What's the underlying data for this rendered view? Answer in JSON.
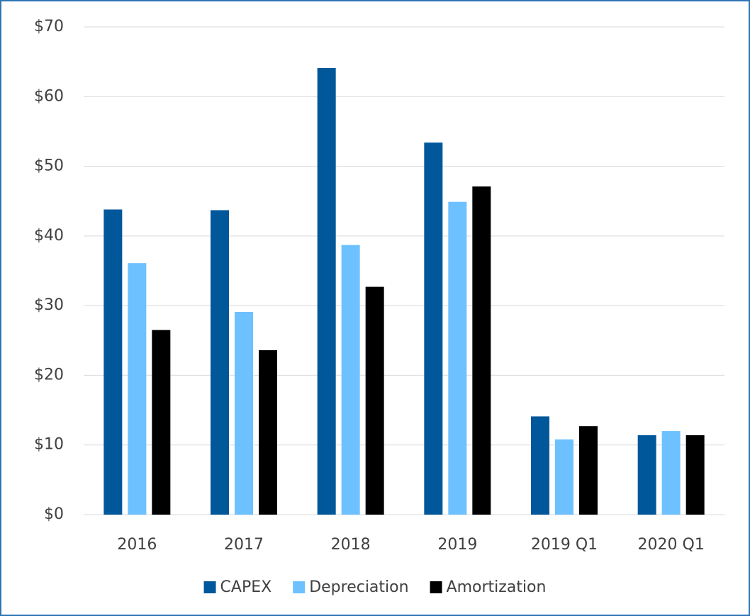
{
  "chart_data": {
    "type": "bar",
    "categories": [
      "2016",
      "2017",
      "2018",
      "2019",
      "2019 Q1",
      "2020 Q1"
    ],
    "series": [
      {
        "name": "CAPEX",
        "color": "#00579a",
        "values": [
          43.8,
          43.7,
          64.1,
          53.4,
          14.1,
          11.4
        ]
      },
      {
        "name": "Depreciation",
        "color": "#6ec1ff",
        "values": [
          36.1,
          29.1,
          38.7,
          44.9,
          10.8,
          12.0
        ]
      },
      {
        "name": "Amortization",
        "color": "#000000",
        "values": [
          26.5,
          23.6,
          32.7,
          47.1,
          12.7,
          11.4
        ]
      }
    ],
    "ylim": [
      0,
      70
    ],
    "yticks": [
      {
        "value": 0,
        "label": "$0"
      },
      {
        "value": 10,
        "label": "$10"
      },
      {
        "value": 20,
        "label": "$20"
      },
      {
        "value": 30,
        "label": "$30"
      },
      {
        "value": 40,
        "label": "$40"
      },
      {
        "value": 50,
        "label": "$50"
      },
      {
        "value": 60,
        "label": "$60"
      },
      {
        "value": 70,
        "label": "$70"
      }
    ],
    "grid": true,
    "legend": "bottom"
  }
}
